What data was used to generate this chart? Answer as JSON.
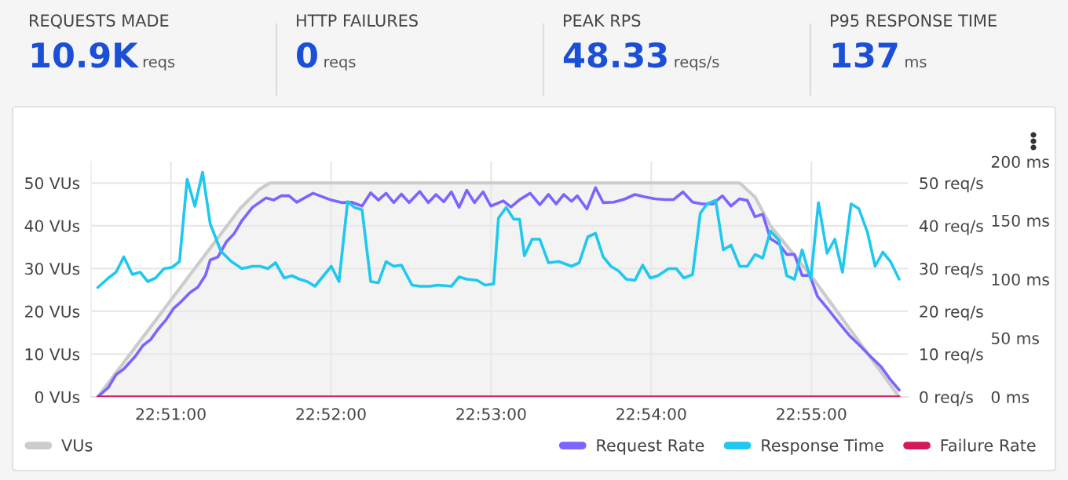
{
  "chart_data": [
    {
      "type": "other",
      "annotations": [
        "REQUESTS MADE",
        "10.9K",
        "reqs",
        "HTTP FAILURES",
        "0",
        "reqs",
        "PEAK RPS",
        "48.33",
        "reqs/s",
        "P95 RESPONSE TIME",
        "137",
        "ms"
      ]
    },
    {
      "type": "line",
      "xlim": [
        22.8417,
        22.9267
      ],
      "xticks": [
        {
          "value": 22.85,
          "label": "22:51:00"
        },
        {
          "value": 22.866667,
          "label": "22:52:00"
        },
        {
          "value": 22.883333,
          "label": "22:53:00"
        },
        {
          "value": 22.9,
          "label": "22:54:00"
        },
        {
          "value": 22.916667,
          "label": "22:55:00"
        }
      ],
      "ylim": [
        0,
        55
      ],
      "yticks": [
        {
          "value": 0,
          "label": "0 VUs"
        },
        {
          "value": 10,
          "label": "10 VUs"
        },
        {
          "value": 20,
          "label": "20 VUs"
        },
        {
          "value": 30,
          "label": "30 VUs"
        },
        {
          "value": 40,
          "label": "40 VUs"
        },
        {
          "value": 50,
          "label": "50 VUs"
        }
      ],
      "y2lim": [
        0,
        55
      ],
      "y2ticks": [
        {
          "value": 0,
          "label": "0 req/s"
        },
        {
          "value": 10,
          "label": "10 req/s"
        },
        {
          "value": 20,
          "label": "20 req/s"
        },
        {
          "value": 30,
          "label": "30 req/s"
        },
        {
          "value": 40,
          "label": "40 req/s"
        },
        {
          "value": 50,
          "label": "50 req/s"
        }
      ],
      "y3lim": [
        0,
        200
      ],
      "y3ticks": [
        {
          "value": 0,
          "label": "0 ms"
        },
        {
          "value": 50,
          "label": "50 ms"
        },
        {
          "value": 100,
          "label": "100 ms"
        },
        {
          "value": 150,
          "label": "150 ms"
        },
        {
          "value": 200,
          "label": "200 ms"
        }
      ],
      "grid": true,
      "legend": "bottom",
      "series": [
        {
          "name": "VUs",
          "type": "area",
          "color": "#cccccc",
          "x": [
            22.8424,
            22.8572,
            22.8592,
            22.8603,
            22.9092,
            22.9108,
            22.9124,
            22.9166,
            22.9258
          ],
          "values": [
            0,
            44,
            48.5,
            50,
            50,
            46.7,
            40,
            28.4,
            0
          ]
        },
        {
          "name": "Request Rate",
          "axis": "y2",
          "color": "#7d64ff",
          "x": [
            22.8424,
            22.8435,
            22.8443,
            22.8451,
            22.8463,
            22.8471,
            22.8479,
            22.8487,
            22.8495,
            22.8503,
            22.8511,
            22.852,
            22.8528,
            22.8536,
            22.8541,
            22.8549,
            22.8558,
            22.8566,
            22.8574,
            22.8585,
            22.8599,
            22.8607,
            22.8615,
            22.8623,
            22.8631,
            22.8648,
            22.8667,
            22.8678,
            22.8688,
            22.8699,
            22.8708,
            22.8716,
            22.8724,
            22.8732,
            22.874,
            22.8748,
            22.8759,
            22.8768,
            22.8776,
            22.8784,
            22.8792,
            22.88,
            22.8808,
            22.8816,
            22.8825,
            22.8833,
            22.8846,
            22.8854,
            22.8863,
            22.8874,
            22.8884,
            22.8893,
            22.8901,
            22.8909,
            22.8917,
            22.8923,
            22.8933,
            22.8942,
            22.895,
            22.8961,
            22.8972,
            22.8983,
            22.8994,
            22.9004,
            22.9015,
            22.9023,
            22.9033,
            22.9043,
            22.9053,
            22.9064,
            22.9074,
            22.9083,
            22.9092,
            22.91,
            22.9108,
            22.9116,
            22.9124,
            22.9133,
            22.9141,
            22.9149,
            22.9157,
            22.9165,
            22.9173,
            22.9184,
            22.9195,
            22.9206,
            22.9217,
            22.9228,
            22.9239,
            22.9249,
            22.9258
          ],
          "values": [
            0,
            2.2,
            5.2,
            6.5,
            9.5,
            12,
            13.4,
            15.9,
            18,
            20.7,
            22.3,
            24.4,
            25.6,
            28.4,
            32,
            32.7,
            36.3,
            38.2,
            41.2,
            44.3,
            46.5,
            46,
            47,
            47,
            45.5,
            47.6,
            46,
            45.4,
            45.5,
            44.6,
            47.7,
            46,
            47.6,
            45.4,
            47.4,
            45.4,
            48,
            45.4,
            47.3,
            45.6,
            47.9,
            44.3,
            48.3,
            45.4,
            47.9,
            44.6,
            45.8,
            44.4,
            46.1,
            47.6,
            44.9,
            47.3,
            45.1,
            47.3,
            45.7,
            47,
            43.9,
            48.9,
            45.4,
            45.5,
            46.2,
            47.3,
            46.7,
            46.3,
            46.1,
            46.1,
            47.9,
            45.5,
            45.1,
            45.1,
            47,
            44.6,
            46.3,
            45.9,
            42.1,
            42.7,
            37,
            35.7,
            33.3,
            33.3,
            28.4,
            28.4,
            23.5,
            20.5,
            17.4,
            14.4,
            12,
            9.5,
            7.1,
            4,
            1.6
          ]
        },
        {
          "name": "Response Time",
          "axis": "y3",
          "color": "#1fc8ef",
          "x": [
            22.8424,
            22.8435,
            22.8443,
            22.8451,
            22.846,
            22.8468,
            22.8476,
            22.8484,
            22.8493,
            22.8501,
            22.8509,
            22.8517,
            22.8525,
            22.8533,
            22.8541,
            22.8552,
            22.8563,
            22.8574,
            22.8585,
            22.8593,
            22.8601,
            22.8609,
            22.8618,
            22.8626,
            22.8634,
            22.8642,
            22.865,
            22.8667,
            22.8675,
            22.8684,
            22.8691,
            22.8699,
            22.8708,
            22.8716,
            22.8724,
            22.8732,
            22.874,
            22.8751,
            22.8759,
            22.877,
            22.8778,
            22.8792,
            22.88,
            22.8808,
            22.8819,
            22.8827,
            22.8836,
            22.8841,
            22.8849,
            22.8857,
            22.8863,
            22.8868,
            22.8876,
            22.8884,
            22.8893,
            22.8904,
            22.8917,
            22.8925,
            22.8934,
            22.8942,
            22.895,
            22.8958,
            22.8966,
            22.8974,
            22.8983,
            22.8991,
            22.8999,
            22.9007,
            22.9018,
            22.9026,
            22.9034,
            22.9043,
            22.9051,
            22.9058,
            22.9067,
            22.9075,
            22.9083,
            22.9092,
            22.91,
            22.9108,
            22.9116,
            22.9124,
            22.9133,
            22.9141,
            22.9149,
            22.9157,
            22.9166,
            22.9174,
            22.9183,
            22.9191,
            22.9199,
            22.9208,
            22.9216,
            22.9225,
            22.9233,
            22.9241,
            22.9249,
            22.9258
          ],
          "values": [
            93,
            101,
            106,
            119,
            104,
            106,
            98,
            101,
            109,
            110,
            115,
            185,
            162,
            191,
            147,
            124,
            115,
            109,
            111,
            111,
            109,
            114,
            101,
            103,
            100,
            98,
            94,
            111,
            98,
            166,
            161,
            159,
            98,
            97,
            115,
            111,
            112,
            95,
            94,
            94,
            95,
            94,
            102,
            100,
            99,
            95,
            96,
            152,
            161,
            151,
            151,
            120,
            134,
            134,
            114,
            115,
            111,
            114,
            136,
            139,
            119,
            111,
            107,
            100,
            99,
            112,
            101,
            103,
            109,
            109,
            101,
            104,
            156,
            164,
            167,
            125,
            129,
            111,
            111,
            121,
            118,
            141,
            133,
            103,
            100,
            125,
            100,
            165,
            122,
            134,
            106,
            164,
            160,
            140,
            111,
            123,
            115,
            100
          ]
        },
        {
          "name": "Failure Rate",
          "axis": "y2",
          "color": "#d5195b",
          "x": [
            22.8424,
            22.9258
          ],
          "values": [
            0,
            0
          ]
        }
      ]
    }
  ]
}
